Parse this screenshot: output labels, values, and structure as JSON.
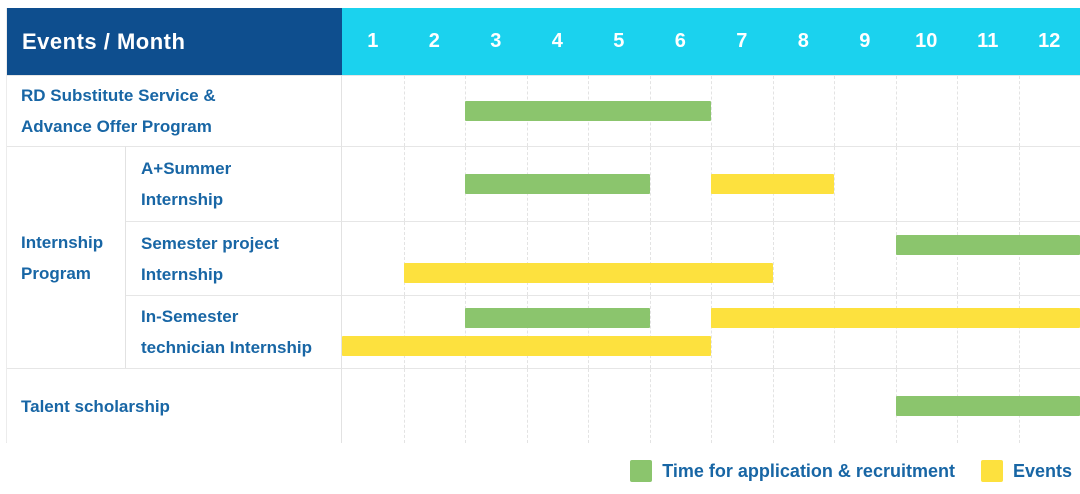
{
  "header": {
    "title": "Events / Month"
  },
  "months": [
    "1",
    "2",
    "3",
    "4",
    "5",
    "6",
    "7",
    "8",
    "9",
    "10",
    "11",
    "12"
  ],
  "colors": {
    "header_navy": "#0e4e8e",
    "header_cyan": "#1bd2ee",
    "application_green": "#8bc56d",
    "event_yellow": "#fde13e",
    "label_blue": "#1866a5",
    "grid_gray": "#e3e3e3"
  },
  "legend": [
    {
      "label": "Time for application & recruitment",
      "kind": "application"
    },
    {
      "label": "Events",
      "kind": "event"
    }
  ],
  "chart_data": {
    "type": "bar",
    "subtype": "gantt",
    "x_axis": {
      "label": "Month",
      "min": 1,
      "max": 12
    },
    "group": {
      "label_lines": [
        "Internship",
        "Program"
      ],
      "first_row": 2,
      "span": 3
    },
    "rows": [
      {
        "label_lines": [
          "RD Substitute Service &",
          "Advance Offer Program"
        ],
        "grouped": false,
        "lines": [
          [
            {
              "kind": "application",
              "start": 3,
              "end": 6
            }
          ]
        ]
      },
      {
        "label_lines": [
          "A+Summer",
          "Internship"
        ],
        "grouped": true,
        "lines": [
          [
            {
              "kind": "application",
              "start": 3,
              "end": 5
            },
            {
              "kind": "event",
              "start": 7,
              "end": 8
            }
          ]
        ]
      },
      {
        "label_lines": [
          "Semester project",
          "Internship"
        ],
        "grouped": true,
        "lines": [
          [
            {
              "kind": "application",
              "start": 10,
              "end": 12
            }
          ],
          [
            {
              "kind": "event",
              "start": 2,
              "end": 7
            }
          ]
        ]
      },
      {
        "label_lines": [
          "In-Semester",
          "technician Internship"
        ],
        "grouped": true,
        "lines": [
          [
            {
              "kind": "application",
              "start": 3,
              "end": 5
            },
            {
              "kind": "event",
              "start": 7,
              "end": 12
            }
          ],
          [
            {
              "kind": "event",
              "start": 1,
              "end": 6
            }
          ]
        ]
      },
      {
        "label_lines": [
          "Talent scholarship"
        ],
        "grouped": false,
        "lines": [
          [
            {
              "kind": "application",
              "start": 10,
              "end": 12
            }
          ]
        ]
      }
    ],
    "kind_labels": {
      "application": "Time for application & recruitment",
      "event": "Events"
    }
  }
}
